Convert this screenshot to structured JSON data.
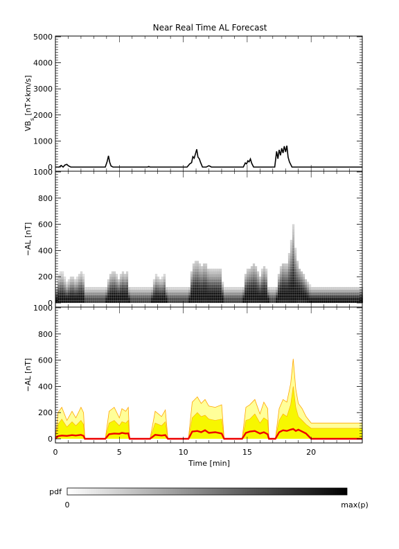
{
  "title": "Near Real Time AL Forecast",
  "chart_data": [
    {
      "type": "line",
      "panel": "solar-wind-driver",
      "ylabel_main": "VB",
      "ylabel_sub": "s",
      "ylabel_rest": " [nT×km/s]",
      "xlim": [
        0,
        24
      ],
      "ylim": [
        0,
        5000
      ],
      "yticks": [
        0,
        1000,
        2000,
        3000,
        4000,
        5000
      ],
      "line_color": "#000000",
      "series": [
        {
          "x": [
            0,
            0.3,
            0.45,
            0.6,
            0.75,
            0.9,
            1.0,
            1.2,
            2.0,
            3.9,
            4.05,
            4.15,
            4.25,
            4.35,
            4.5,
            7.2,
            7.3,
            7.4,
            10.3,
            10.5,
            10.65,
            10.75,
            10.85,
            10.95,
            11.05,
            11.15,
            11.25,
            11.35,
            11.5,
            11.8,
            12.0,
            12.1,
            12.2,
            14.7,
            14.85,
            14.95,
            15.05,
            15.15,
            15.25,
            15.35,
            15.5,
            17.15,
            17.3,
            17.4,
            17.5,
            17.6,
            17.7,
            17.8,
            17.9,
            18.0,
            18.1,
            18.2,
            18.3,
            18.5,
            24
          ],
          "y": [
            0,
            0,
            60,
            0,
            80,
            100,
            50,
            0,
            0,
            0,
            220,
            430,
            180,
            40,
            0,
            0,
            20,
            0,
            0,
            120,
            170,
            400,
            340,
            500,
            680,
            380,
            320,
            180,
            0,
            0,
            50,
            30,
            0,
            0,
            160,
            120,
            240,
            200,
            310,
            150,
            0,
            0,
            600,
            320,
            660,
            450,
            720,
            540,
            800,
            580,
            820,
            380,
            200,
            0,
            0
          ]
        }
      ]
    },
    {
      "type": "heatmap",
      "panel": "probability-distribution",
      "ylabel": "−AL [nT]",
      "xlim": [
        0,
        24
      ],
      "ylim": [
        0,
        1000
      ],
      "yticks": [
        0,
        200,
        400,
        600,
        800,
        1000
      ],
      "colormap": [
        "#ffffff",
        "#000000"
      ],
      "bin_height_nT": 20
    },
    {
      "type": "area",
      "panel": "forecast-band",
      "ylabel": "−AL [nT]",
      "xlabel": "Time [min]",
      "xlim": [
        0,
        24
      ],
      "xticks": [
        0,
        5,
        10,
        15,
        20
      ],
      "ylim": [
        0,
        1000
      ],
      "yticks": [
        0,
        200,
        400,
        600,
        800,
        1000
      ],
      "band_color": "#ffff99",
      "inner_color": "#f7f700",
      "envelope_color": "#ffa500",
      "median_color": "#ee0000",
      "x": [
        0,
        0.2,
        0.5,
        0.9,
        1.3,
        1.6,
        2.0,
        2.2,
        2.3,
        3.9,
        4.2,
        4.6,
        5.0,
        5.2,
        5.5,
        5.7,
        5.8,
        7.4,
        7.8,
        8.3,
        8.6,
        8.8,
        10.4,
        10.7,
        11.1,
        11.4,
        11.7,
        12.0,
        12.5,
        13.0,
        13.2,
        14.6,
        14.9,
        15.2,
        15.6,
        16.0,
        16.3,
        16.6,
        16.7,
        17.2,
        17.5,
        17.8,
        18.1,
        18.4,
        18.6,
        18.8,
        19.0,
        19.3,
        19.6,
        20.0,
        24
      ],
      "envelope_upper": [
        0,
        200,
        240,
        140,
        210,
        160,
        240,
        200,
        0,
        0,
        210,
        240,
        160,
        230,
        210,
        240,
        0,
        0,
        210,
        170,
        220,
        0,
        0,
        280,
        320,
        270,
        300,
        250,
        240,
        260,
        0,
        0,
        240,
        260,
        300,
        190,
        280,
        230,
        0,
        0,
        230,
        300,
        280,
        420,
        610,
        380,
        270,
        230,
        170,
        120,
        120
      ],
      "inner_upper": [
        0,
        110,
        150,
        90,
        130,
        100,
        140,
        110,
        0,
        0,
        120,
        140,
        100,
        130,
        120,
        140,
        0,
        0,
        120,
        100,
        130,
        0,
        0,
        160,
        200,
        170,
        180,
        150,
        140,
        150,
        0,
        0,
        140,
        150,
        190,
        120,
        160,
        140,
        0,
        0,
        140,
        190,
        170,
        260,
        400,
        240,
        170,
        140,
        110,
        80,
        80
      ],
      "median": [
        0,
        20,
        25,
        22,
        28,
        25,
        30,
        22,
        0,
        0,
        35,
        40,
        38,
        45,
        40,
        42,
        0,
        0,
        30,
        25,
        28,
        0,
        0,
        55,
        60,
        50,
        65,
        45,
        50,
        40,
        0,
        0,
        45,
        55,
        60,
        40,
        50,
        35,
        0,
        0,
        50,
        65,
        60,
        70,
        75,
        60,
        70,
        55,
        40,
        0,
        0
      ]
    }
  ],
  "colorbar": {
    "label": "pdf",
    "min_label": "0",
    "max_label": "max(p)",
    "from_color": "#ffffff",
    "to_color": "#000000"
  }
}
